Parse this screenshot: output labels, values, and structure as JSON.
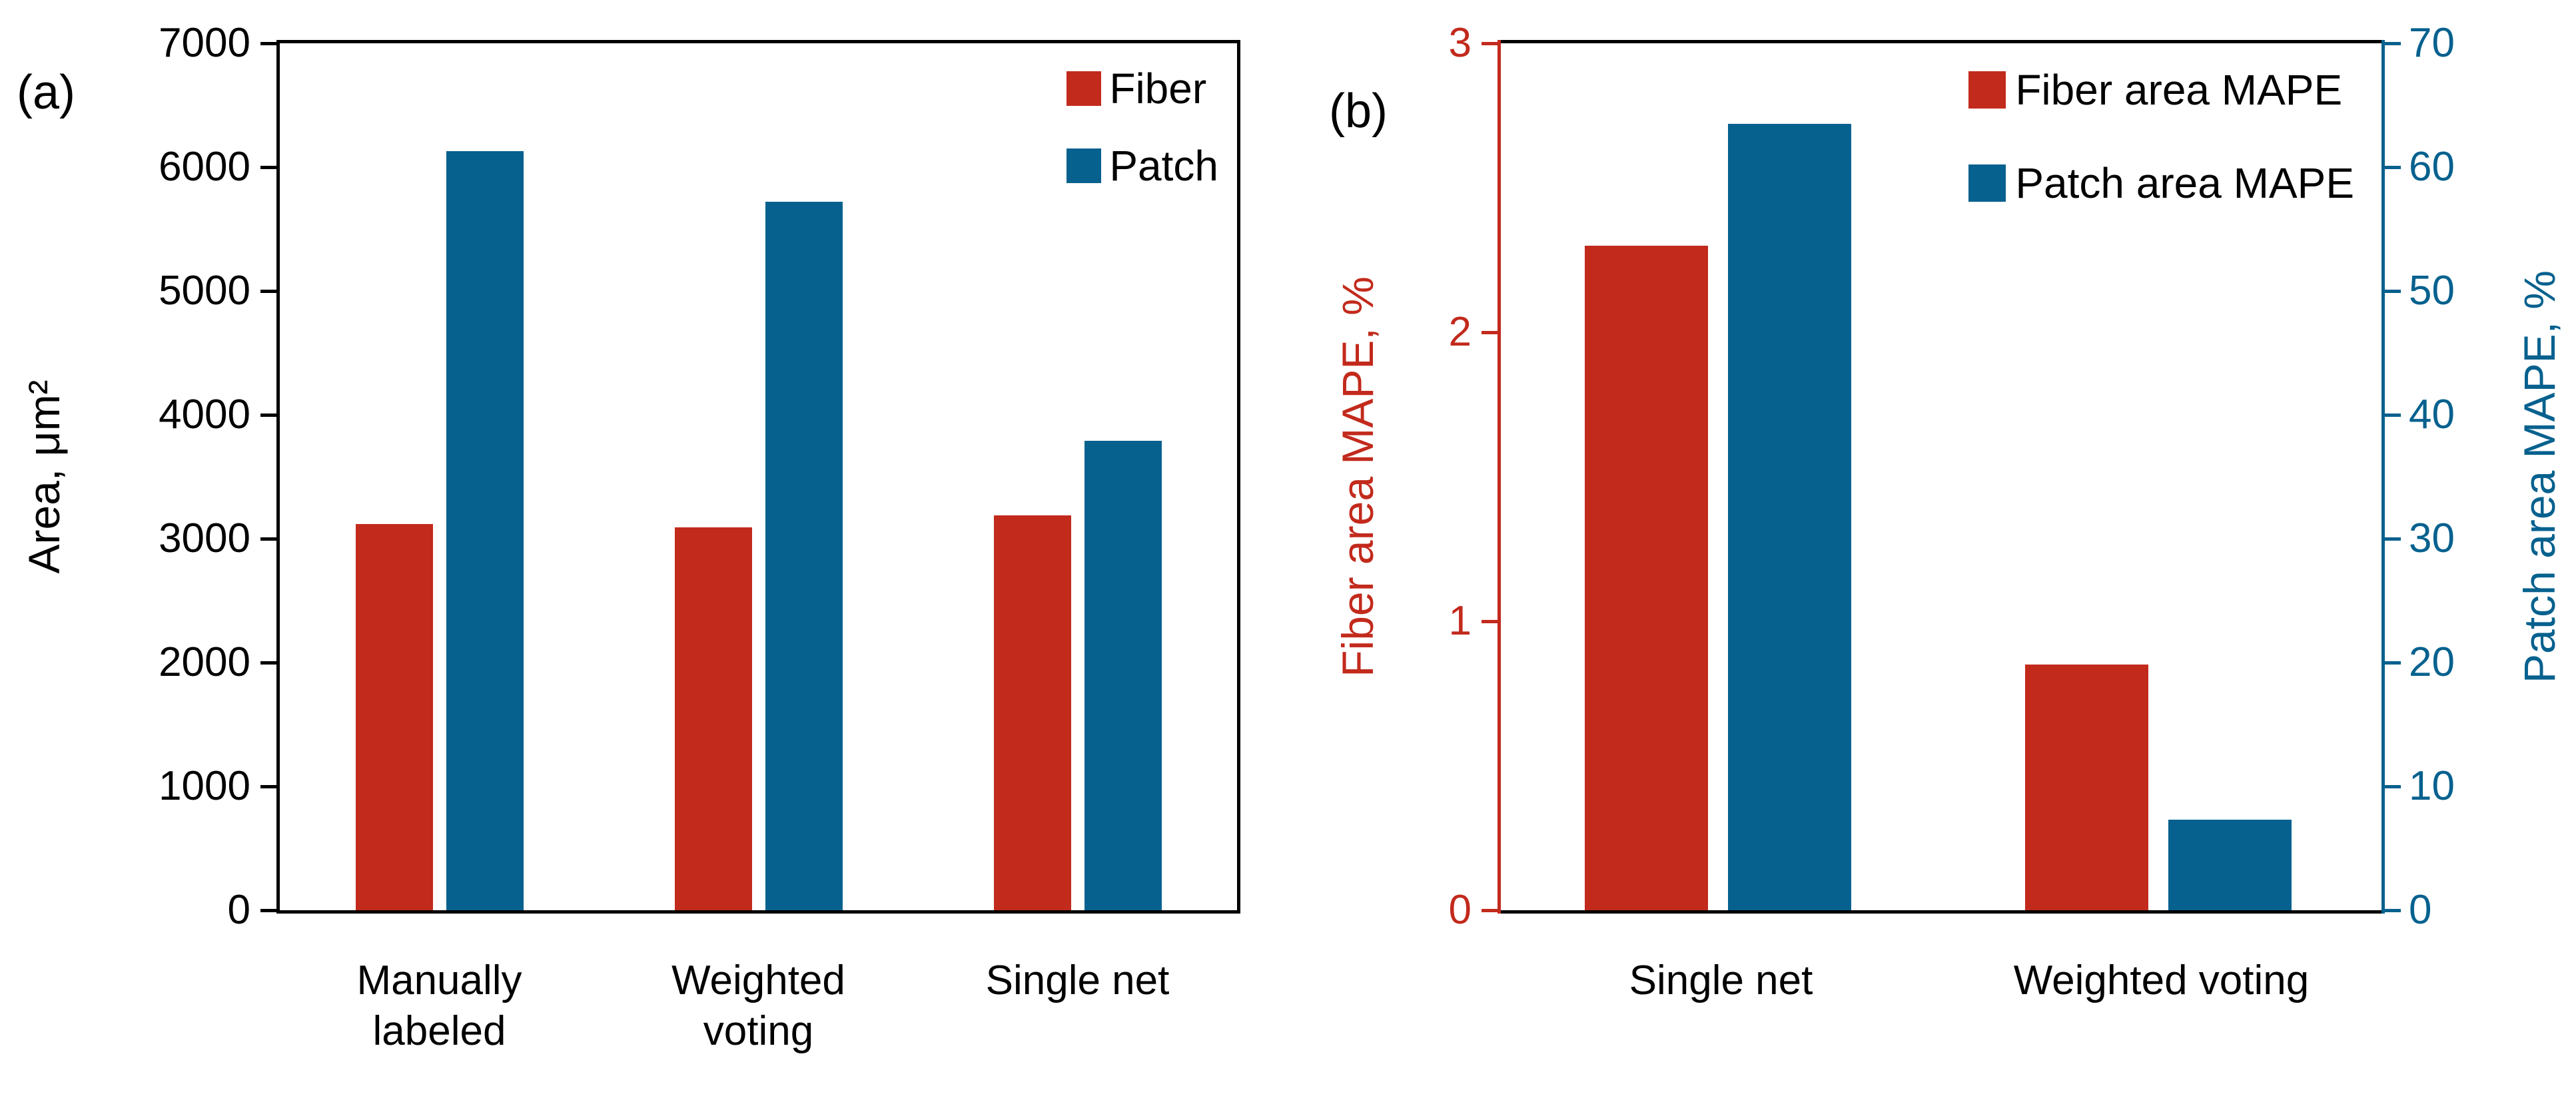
{
  "colors": {
    "fiber_red": "#c22a1c",
    "patch_blue": "#06618e",
    "axis_black": "#000000",
    "background": "#ffffff"
  },
  "chart_data": [
    {
      "id": "a",
      "type": "bar",
      "panel_tag": "(a)",
      "title": "",
      "categories": [
        "Manually\nlabeled",
        "Weighted\nvoting",
        "Single net"
      ],
      "series": [
        {
          "name": "Fiber",
          "color": "#c22a1c",
          "axis": "left",
          "values": [
            3120,
            3090,
            3190
          ]
        },
        {
          "name": "Patch",
          "color": "#06618e",
          "axis": "left",
          "values": [
            6130,
            5720,
            3790
          ]
        }
      ],
      "ylabel": "Area, μm²",
      "xlabel": "",
      "ylim": [
        0,
        7000
      ],
      "yticks": [
        0,
        1000,
        2000,
        3000,
        4000,
        5000,
        6000,
        7000
      ],
      "grid": false,
      "legend_position": "top-right"
    },
    {
      "id": "b",
      "type": "bar",
      "panel_tag": "(b)",
      "title": "",
      "categories": [
        "Single net",
        "Weighted voting"
      ],
      "series": [
        {
          "name": "Fiber area MAPE",
          "color": "#c22a1c",
          "axis": "left",
          "values": [
            2.3,
            0.85
          ]
        },
        {
          "name": "Patch area MAPE",
          "color": "#06618e",
          "axis": "right",
          "values": [
            63.5,
            7.3
          ]
        }
      ],
      "ylabel_left": "Fiber area MAPE, %",
      "ylabel_right": "Patch area MAPE, %",
      "xlabel": "",
      "ylim_left": [
        0,
        3
      ],
      "ylim_right": [
        0,
        70
      ],
      "yticks_left": [
        0,
        1,
        2,
        3
      ],
      "yticks_right": [
        0,
        10,
        20,
        30,
        40,
        50,
        60,
        70
      ],
      "axis_left_color": "#c22a1c",
      "axis_right_color": "#06618e",
      "grid": false,
      "legend_position": "top-right"
    }
  ]
}
